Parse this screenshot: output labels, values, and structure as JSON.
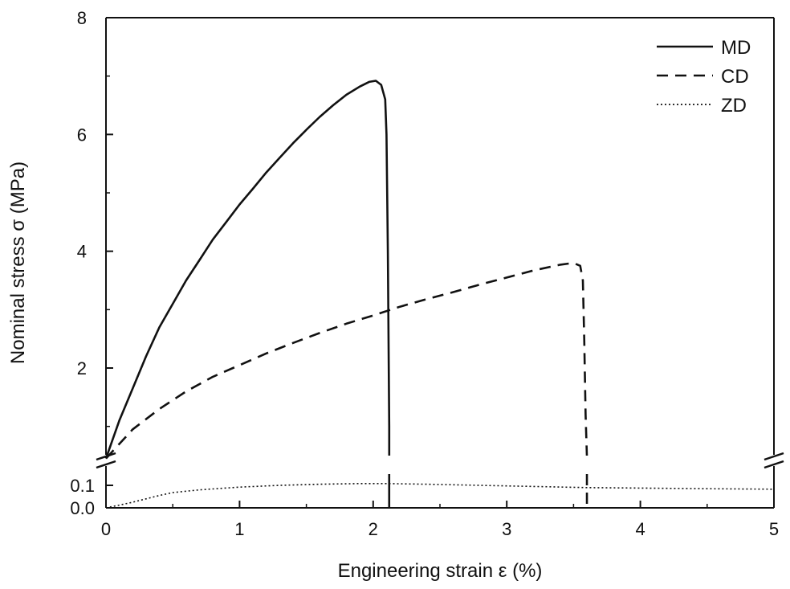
{
  "chart_data": {
    "type": "line",
    "title": "",
    "xlabel": "Engineering strain ε (%)",
    "ylabel": "Nominal stress σ (MPa)",
    "xlim": [
      0,
      5
    ],
    "x_ticks": [
      0,
      1,
      2,
      3,
      4,
      5
    ],
    "x_tick_labels": [
      "0",
      "1",
      "2",
      "3",
      "4",
      "5"
    ],
    "y_axis_broken": true,
    "y_axis_break_between": [
      0.1,
      2
    ],
    "y_lower_segment": {
      "ylim": [
        0,
        0.13
      ],
      "ticks": [
        0.0,
        0.1
      ],
      "tick_labels": [
        "0.0",
        "0.1"
      ]
    },
    "y_upper_segment": {
      "ylim": [
        0.5,
        8
      ],
      "ticks": [
        2,
        4,
        6,
        8
      ],
      "tick_labels": [
        "2",
        "4",
        "6",
        "8"
      ]
    },
    "grid": false,
    "legend_position": "top-right",
    "series": [
      {
        "name": "MD",
        "line_style": "solid",
        "color": "#111111",
        "segment": "upper",
        "points": [
          [
            0.0,
            0.45
          ],
          [
            0.1,
            1.1
          ],
          [
            0.2,
            1.65
          ],
          [
            0.3,
            2.2
          ],
          [
            0.4,
            2.7
          ],
          [
            0.5,
            3.1
          ],
          [
            0.6,
            3.5
          ],
          [
            0.7,
            3.85
          ],
          [
            0.8,
            4.2
          ],
          [
            0.9,
            4.5
          ],
          [
            1.0,
            4.8
          ],
          [
            1.1,
            5.07
          ],
          [
            1.2,
            5.35
          ],
          [
            1.3,
            5.6
          ],
          [
            1.4,
            5.85
          ],
          [
            1.5,
            6.08
          ],
          [
            1.6,
            6.3
          ],
          [
            1.7,
            6.5
          ],
          [
            1.8,
            6.68
          ],
          [
            1.9,
            6.82
          ],
          [
            1.97,
            6.9
          ],
          [
            2.02,
            6.92
          ],
          [
            2.06,
            6.85
          ],
          [
            2.09,
            6.6
          ],
          [
            2.1,
            6.0
          ],
          [
            2.11,
            4.0
          ],
          [
            2.12,
            1.0
          ],
          [
            2.12,
            0.5
          ]
        ]
      },
      {
        "name": "CD",
        "line_style": "dashed",
        "color": "#111111",
        "segment": "upper",
        "points": [
          [
            0.0,
            0.45
          ],
          [
            0.2,
            0.95
          ],
          [
            0.4,
            1.3
          ],
          [
            0.6,
            1.6
          ],
          [
            0.8,
            1.85
          ],
          [
            1.0,
            2.05
          ],
          [
            1.2,
            2.25
          ],
          [
            1.4,
            2.43
          ],
          [
            1.6,
            2.6
          ],
          [
            1.8,
            2.76
          ],
          [
            2.0,
            2.9
          ],
          [
            2.2,
            3.05
          ],
          [
            2.4,
            3.18
          ],
          [
            2.6,
            3.3
          ],
          [
            2.8,
            3.43
          ],
          [
            3.0,
            3.55
          ],
          [
            3.2,
            3.67
          ],
          [
            3.4,
            3.77
          ],
          [
            3.5,
            3.8
          ],
          [
            3.55,
            3.75
          ],
          [
            3.57,
            3.5
          ],
          [
            3.58,
            2.5
          ],
          [
            3.59,
            1.2
          ],
          [
            3.6,
            0.5
          ]
        ]
      },
      {
        "name": "ZD",
        "line_style": "dotted",
        "color": "#111111",
        "segment": "lower",
        "points": [
          [
            0.0,
            0.0
          ],
          [
            0.1,
            0.012
          ],
          [
            0.2,
            0.025
          ],
          [
            0.3,
            0.04
          ],
          [
            0.4,
            0.055
          ],
          [
            0.5,
            0.068
          ],
          [
            0.7,
            0.08
          ],
          [
            1.0,
            0.092
          ],
          [
            1.3,
            0.1
          ],
          [
            1.6,
            0.105
          ],
          [
            1.9,
            0.108
          ],
          [
            2.1,
            0.108
          ],
          [
            2.4,
            0.105
          ],
          [
            2.8,
            0.1
          ],
          [
            3.2,
            0.095
          ],
          [
            3.6,
            0.09
          ],
          [
            4.0,
            0.088
          ],
          [
            4.5,
            0.085
          ],
          [
            5.0,
            0.083
          ]
        ]
      }
    ]
  }
}
